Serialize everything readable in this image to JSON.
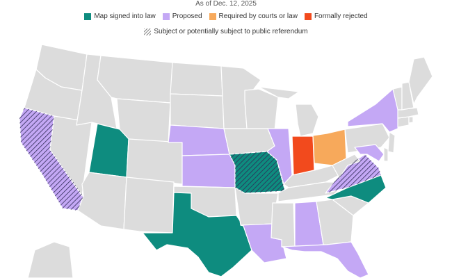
{
  "subtitle": "As of Dec. 12, 2025",
  "legend": {
    "items": [
      {
        "label": "Map signed into law",
        "color": "#0e8c7f"
      },
      {
        "label": "Proposed",
        "color": "#c4a8f5"
      },
      {
        "label": "Required by courts or law",
        "color": "#f7a95b"
      },
      {
        "label": "Formally rejected",
        "color": "#f24a1d"
      }
    ],
    "hatch_label": "Subject or potentially subject to public referendum"
  },
  "colors": {
    "neutral": "#dcdcdc",
    "border": "#ffffff",
    "signed": "#0e8c7f",
    "proposed": "#c4a8f5",
    "required": "#f7a95b",
    "rejected": "#f24a1d"
  },
  "states_status": {
    "Utah": "signed",
    "Texas": "signed",
    "Missouri": "signed",
    "North Carolina": "signed",
    "California": "proposed",
    "Nebraska": "proposed",
    "Kansas": "proposed",
    "Illinois": "proposed",
    "New York": "proposed",
    "Maryland": "proposed",
    "Virginia": "proposed",
    "Louisiana": "proposed",
    "Alabama": "proposed",
    "Florida": "proposed",
    "Ohio": "required",
    "Indiana": "rejected"
  },
  "referendum_states": [
    "California",
    "Missouri",
    "Virginia"
  ]
}
